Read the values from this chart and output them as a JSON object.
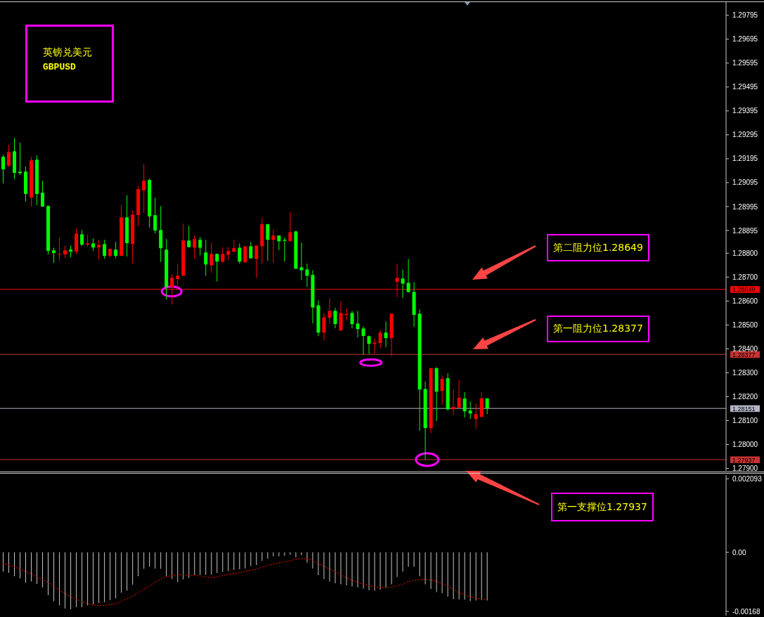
{
  "chart_data": [
    {
      "type": "candlestick",
      "title": "英镑兑美元",
      "subtitle": "GBPUSD",
      "categories": [
        null,
        null,
        null,
        null,
        null,
        null,
        null,
        null,
        null,
        null,
        null,
        null,
        null,
        null,
        null,
        null,
        null,
        null,
        null,
        null,
        null,
        null,
        null,
        null,
        null,
        null,
        null,
        null,
        null,
        null,
        null,
        null,
        null,
        null,
        null,
        null,
        null,
        null,
        null,
        null,
        null,
        null,
        null,
        null,
        null,
        null,
        null,
        null,
        null,
        null,
        null,
        null,
        null,
        null,
        null,
        null,
        null,
        null,
        null,
        null,
        null,
        null,
        null,
        null,
        null,
        null,
        null,
        null,
        null,
        null,
        null,
        null,
        null,
        null,
        null,
        null,
        null,
        null,
        null,
        null,
        null,
        null,
        null,
        null,
        null,
        null,
        null,
        null,
        null,
        null,
        null,
        null,
        null,
        null,
        null,
        null,
        null,
        null,
        null,
        null,
        null,
        null,
        null,
        null,
        null,
        null,
        null,
        null,
        null,
        null,
        null,
        null,
        null,
        null,
        null,
        null,
        null,
        null,
        null,
        null,
        null,
        null,
        null,
        null,
        null,
        null,
        null,
        null,
        null
      ],
      "ohlc": [
        [
          1.29203,
          1.29212,
          1.29092,
          1.29151
        ],
        [
          1.29166,
          1.29253,
          1.2916,
          1.29223
        ],
        [
          1.29226,
          1.29282,
          1.2911,
          1.29136
        ],
        [
          1.29141,
          1.29262,
          1.29127,
          1.29135
        ],
        [
          1.29141,
          1.29162,
          1.29016,
          1.29048
        ],
        [
          1.29033,
          1.29203,
          1.28995,
          1.29188
        ],
        [
          1.29191,
          1.29209,
          1.29001,
          1.29048
        ],
        [
          1.29053,
          1.29103,
          1.28995,
          1.28995
        ],
        [
          1.28997,
          1.29001,
          1.28795,
          1.2881
        ],
        [
          1.28812,
          1.28823,
          1.2876,
          1.28801
        ],
        [
          1.28795,
          1.28865,
          1.28768,
          1.28797
        ],
        [
          1.28795,
          1.28832,
          1.2878,
          1.28812
        ],
        [
          1.28815,
          1.28832,
          1.28783,
          1.28807
        ],
        [
          1.28807,
          1.28903,
          1.28798,
          1.28882
        ],
        [
          1.28879,
          1.28897,
          1.2883,
          1.28836
        ],
        [
          1.28836,
          1.28879,
          1.28827,
          1.28841
        ],
        [
          1.28841,
          1.28862,
          1.2881,
          1.28824
        ],
        [
          1.28824,
          1.28856,
          1.28774,
          1.28835
        ],
        [
          1.28838,
          1.28856,
          1.28777,
          1.28789
        ],
        [
          1.28789,
          1.28818,
          1.28783,
          1.28818
        ],
        [
          1.28815,
          1.28847,
          1.2878,
          1.28789
        ],
        [
          1.28789,
          1.29003,
          1.28789,
          1.2895
        ],
        [
          1.2895,
          1.29042,
          1.28786,
          1.28842
        ],
        [
          1.28839,
          1.28979,
          1.28757,
          1.28962
        ],
        [
          1.2896,
          1.29082,
          1.28913,
          1.29068
        ],
        [
          1.29063,
          1.29174,
          1.28968,
          1.29103
        ],
        [
          1.29106,
          1.29112,
          1.28907,
          1.28954
        ],
        [
          1.28959,
          1.29032,
          1.28883,
          1.28895
        ],
        [
          1.28897,
          1.28997,
          1.28763,
          1.28821
        ],
        [
          1.28815,
          1.28859,
          1.28607,
          1.28658
        ],
        [
          1.28658,
          1.28712,
          1.28586,
          1.28697
        ],
        [
          1.28692,
          1.28756,
          1.28656,
          1.28706
        ],
        [
          1.28706,
          1.28923,
          1.28706,
          1.28853
        ],
        [
          1.28853,
          1.28915,
          1.28823,
          1.28826
        ],
        [
          1.28823,
          1.28874,
          1.28779,
          1.28859
        ],
        [
          1.28856,
          1.28868,
          1.28791,
          1.28823
        ],
        [
          1.28803,
          1.28856,
          1.28706,
          1.28753
        ],
        [
          1.2875,
          1.28844,
          1.28718,
          1.28797
        ],
        [
          1.28797,
          1.28797,
          1.28682,
          1.28765
        ],
        [
          1.28765,
          1.28826,
          1.28759,
          1.28797
        ],
        [
          1.28794,
          1.28826,
          1.28771,
          1.28809
        ],
        [
          1.28806,
          1.28856,
          1.28806,
          1.28821
        ],
        [
          1.28823,
          1.28841,
          1.28756,
          1.28765
        ],
        [
          1.28762,
          1.28829,
          1.28762,
          1.28829
        ],
        [
          1.28829,
          1.28847,
          1.28776,
          1.28779
        ],
        [
          1.28776,
          1.28832,
          1.28697,
          1.28832
        ],
        [
          1.28829,
          1.28947,
          1.28756,
          1.28921
        ],
        [
          1.28921,
          1.28923,
          1.28768,
          1.28856
        ],
        [
          1.28856,
          1.289,
          1.28759,
          1.28874
        ],
        [
          1.28874,
          1.28874,
          1.28812,
          1.2885
        ],
        [
          1.28856,
          1.28865,
          1.28765,
          1.28852
        ],
        [
          1.2885,
          1.28971,
          1.2885,
          1.28888
        ],
        [
          1.28891,
          1.28894,
          1.28735,
          1.28735
        ],
        [
          1.28741,
          1.28844,
          1.28688,
          1.28729
        ],
        [
          1.28732,
          1.28756,
          1.28659,
          1.28706
        ],
        [
          1.28709,
          1.28729,
          1.28506,
          1.28573
        ],
        [
          1.28582,
          1.28603,
          1.28453,
          1.28468
        ],
        [
          1.28468,
          1.2855,
          1.28435,
          1.28532
        ],
        [
          1.2853,
          1.28612,
          1.28507,
          1.28559
        ],
        [
          1.28559,
          1.28571,
          1.28486,
          1.28504
        ],
        [
          1.28477,
          1.286,
          1.28477,
          1.2855
        ],
        [
          1.28542,
          1.28571,
          1.28518,
          1.28546
        ],
        [
          1.2855,
          1.28559,
          1.28486,
          1.28504
        ],
        [
          1.28506,
          1.28559,
          1.28448,
          1.28483
        ],
        [
          1.28485,
          1.28494,
          1.28376,
          1.28454
        ],
        [
          1.28453,
          1.28456,
          1.28379,
          1.28421
        ],
        [
          1.28421,
          1.28444,
          1.28379,
          1.28426
        ],
        [
          1.28424,
          1.28479,
          1.28401,
          1.28468
        ],
        [
          1.28468,
          1.28515,
          1.28407,
          1.28445
        ],
        [
          1.28445,
          1.2855,
          1.28369,
          1.28547
        ],
        [
          1.2868,
          1.28756,
          1.28616,
          1.28697
        ],
        [
          1.28694,
          1.28732,
          1.28612,
          1.28673
        ],
        [
          1.28676,
          1.28776,
          1.28635,
          1.28638
        ],
        [
          1.28638,
          1.28679,
          1.28492,
          1.28542
        ],
        [
          1.28547,
          1.28565,
          1.28057,
          1.2823
        ],
        [
          1.28232,
          1.28263,
          1.27937,
          1.28069
        ],
        [
          1.28069,
          1.28321,
          1.28048,
          1.28319
        ],
        [
          1.28319,
          1.28324,
          1.28098,
          1.28221
        ],
        [
          1.28224,
          1.28289,
          1.28166,
          1.28274
        ],
        [
          1.28277,
          1.28298,
          1.28142,
          1.28148
        ],
        [
          1.28148,
          1.2823,
          1.28124,
          1.28157
        ],
        [
          1.28154,
          1.28271,
          1.28151,
          1.28195
        ],
        [
          1.28192,
          1.28219,
          1.28113,
          1.28139
        ],
        [
          1.28142,
          1.2818,
          1.28107,
          1.2813
        ],
        [
          1.28107,
          1.28171,
          1.28066,
          1.28127
        ],
        [
          1.28116,
          1.28219,
          1.28113,
          1.28193
        ],
        [
          1.28193,
          1.28193,
          1.28127,
          1.28151
        ],
        null,
        null,
        null,
        null,
        null,
        null,
        null,
        null,
        null,
        null,
        null,
        null,
        null,
        null,
        null,
        null,
        null,
        null,
        null,
        null,
        null,
        null,
        null,
        null,
        null,
        null,
        null,
        null,
        null,
        null,
        null,
        null,
        null,
        null,
        null,
        null,
        null,
        null,
        null,
        null,
        null,
        null
      ],
      "colors": [
        "#00ff00",
        "#ff0000",
        "#00ff00",
        "#00ff00",
        "#00ff00",
        "#ff0000",
        "#00ff00",
        "#00ff00",
        "#00ff00",
        "#00ff00",
        "#ff0000",
        "#ff0000",
        "#00ff00",
        "#ff0000",
        "#00ff00",
        "#ff0000",
        "#00ff00",
        "#ff0000",
        "#00ff00",
        "#ff0000",
        "#00ff00",
        "#ff0000",
        "#00ff00",
        "#ff0000",
        "#ff0000",
        "#ff0000",
        "#00ff00",
        "#00ff00",
        "#00ff00",
        "#00ff00",
        "#ff0000",
        "#ff0000",
        "#ff0000",
        "#00ff00",
        "#ff0000",
        "#00ff00",
        "#00ff00",
        "#ff0000",
        "#00ff00",
        "#ff0000",
        "#ff0000",
        "#ff0000",
        "#00ff00",
        "#ff0000",
        "#00ff00",
        "#ff0000",
        "#ff0000",
        "#00ff00",
        "#ff0000",
        "#00ff00",
        "#00ff00",
        "#ff0000",
        "#00ff00",
        "#00ff00",
        "#00ff00",
        "#00ff00",
        "#00ff00",
        "#ff0000",
        "#ff0000",
        "#00ff00",
        "#ff0000",
        "#ff0000",
        "#00ff00",
        "#00ff00",
        "#00ff00",
        "#00ff00",
        "#ff0000",
        "#ff0000",
        "#00ff00",
        "#ff0000",
        "#ff0000",
        "#00ff00",
        "#00ff00",
        "#00ff00",
        "#00ff00",
        "#00ff00",
        "#ff0000",
        "#00ff00",
        "#ff0000",
        "#00ff00",
        "#ff0000",
        "#ff0000",
        "#00ff00",
        "#00ff00",
        "#ff0000",
        "#ff0000",
        "#00ff00",
        null,
        null,
        null,
        null,
        null,
        null,
        null,
        null,
        null,
        null,
        null,
        null,
        null,
        null,
        null,
        null,
        null,
        null,
        null,
        null,
        null,
        null,
        null,
        null,
        null,
        null,
        null,
        null,
        null,
        null,
        null,
        null,
        null,
        null,
        null,
        null,
        null,
        null,
        null,
        null,
        null,
        null
      ],
      "ylim": [
        1.2789,
        1.2985
      ],
      "yticks": [
        1.29795,
        1.29695,
        1.29595,
        1.29495,
        1.29395,
        1.29295,
        1.29195,
        1.29095,
        1.28995,
        1.28895,
        {
          "value": 1.288,
          "label": "1.28800"
        },
        {
          "value": 1.287,
          "label": "1.28700"
        },
        {
          "value": 1.286,
          "label": "1.28600"
        },
        {
          "value": 1.285,
          "label": "1.28500"
        },
        {
          "value": 1.284,
          "label": "1.28400"
        },
        {
          "value": 1.283,
          "label": "1.28300"
        },
        {
          "value": 1.282,
          "label": "1.28200"
        },
        {
          "value": 1.281,
          "label": "1.28100"
        },
        {
          "value": 1.28,
          "label": "1.28000"
        },
        {
          "value": 1.279,
          "label": "1.27900"
        }
      ],
      "tick_labels": "y",
      "ref_lines": [
        {
          "axis": "y",
          "value": 1.28649,
          "label": "1.28649",
          "color": "#ff0000"
        },
        {
          "axis": "y",
          "value": 1.28377,
          "label": "1.28377",
          "color": "#c83232"
        },
        {
          "axis": "y",
          "value": 1.28151,
          "label": "1.28151",
          "color": "#b4b4c8"
        },
        {
          "axis": "y",
          "value": 1.27937,
          "label": "1.27937",
          "color": "#c83232"
        }
      ],
      "annotations": [
        "第二阻力位1.28649",
        "第一阻力位1.28377",
        "第一支撑位1.27937"
      ]
    },
    {
      "type": "bar",
      "categories": [
        null,
        null,
        null,
        null,
        null,
        null,
        null,
        null,
        null,
        null,
        null,
        null,
        null,
        null,
        null,
        null,
        null,
        null,
        null,
        null,
        null,
        null,
        null,
        null,
        null,
        null,
        null,
        null,
        null,
        null,
        null,
        null,
        null,
        null,
        null,
        null,
        null,
        null,
        null,
        null,
        null,
        null,
        null,
        null,
        null,
        null,
        null,
        null,
        null,
        null,
        null,
        null,
        null,
        null,
        null,
        null,
        null,
        null,
        null,
        null,
        null,
        null,
        null,
        null,
        null,
        null,
        null,
        null,
        null,
        null,
        null,
        null,
        null,
        null,
        null,
        null,
        null,
        null,
        null,
        null,
        null,
        null,
        null,
        null,
        null,
        null,
        null,
        null,
        null,
        null,
        null,
        null,
        null,
        null,
        null,
        null,
        null,
        null,
        null,
        null,
        null,
        null,
        null,
        null,
        null,
        null,
        null,
        null,
        null,
        null,
        null,
        null,
        null,
        null,
        null,
        null,
        null,
        null,
        null,
        null,
        null,
        null,
        null,
        null,
        null,
        null,
        null,
        null,
        null
      ],
      "series": [
        {
          "type": "bar",
          "color": "#c8c8c8",
          "values": [
            -0.00055,
            -0.00058,
            -0.00068,
            -0.00074,
            -0.00086,
            -0.00083,
            -0.0009,
            -0.001,
            -0.00122,
            -0.00139,
            -0.00151,
            -0.0016,
            -0.00162,
            -0.00156,
            -0.00156,
            -0.00151,
            -0.00148,
            -0.00144,
            -0.00142,
            -0.00136,
            -0.00131,
            -0.00115,
            -0.00109,
            -0.00092,
            -0.00068,
            -0.00047,
            -0.00041,
            -0.00046,
            -0.00047,
            -0.00068,
            -0.00076,
            -0.00085,
            -0.00077,
            -0.00073,
            -0.00065,
            -0.00064,
            -0.00064,
            -0.00063,
            -0.00059,
            -0.00056,
            -0.00053,
            -0.0005,
            -0.00048,
            -0.00046,
            -0.00039,
            -0.00036,
            -0.00024,
            -0.00018,
            -0.00011,
            -0.00011,
            -0.0001,
            -7e-05,
            -0.00014,
            -8e-05,
            -0.00029,
            -0.00046,
            -0.00065,
            -0.00076,
            -0.00083,
            -0.00088,
            -0.00091,
            -0.00094,
            -0.00097,
            -0.001,
            -0.00103,
            -0.00108,
            -0.00109,
            -0.00106,
            -0.001,
            -0.00091,
            -0.0007,
            -0.00055,
            -0.00041,
            -0.00041,
            -0.00068,
            -0.00091,
            -0.00104,
            -0.00113,
            -0.00116,
            -0.00126,
            -0.00133,
            -0.00134,
            -0.00135,
            -0.00139,
            -0.00137,
            -0.00136,
            -0.00137,
            null,
            null,
            null,
            null,
            null,
            null,
            null,
            null,
            null,
            null,
            null,
            null,
            null,
            null,
            null,
            null,
            null,
            null,
            null,
            null,
            null,
            null,
            null,
            null,
            null,
            null,
            null,
            null,
            null,
            null,
            null,
            null,
            null,
            null,
            null,
            null,
            null,
            null,
            null,
            null,
            null,
            null
          ]
        },
        {
          "type": "line",
          "color": "#ff0000",
          "line_style": "dotted",
          "values": [
            -0.00032,
            -0.00036,
            -0.00041,
            -0.00047,
            -0.00054,
            -0.00061,
            -0.00069,
            -0.00077,
            -0.00085,
            -0.00096,
            -0.00108,
            -0.00117,
            -0.00126,
            -0.00133,
            -0.00139,
            -0.00146,
            -0.0015,
            -0.00151,
            -0.00151,
            -0.00149,
            -0.00146,
            -0.00141,
            -0.00132,
            -0.00126,
            -0.00116,
            -0.00106,
            -0.00097,
            -0.00085,
            -0.00076,
            -0.0007,
            -0.00066,
            -0.00063,
            -0.00064,
            -0.00065,
            -0.00065,
            -0.00067,
            -0.0007,
            -0.00072,
            -0.0007,
            -0.00066,
            -0.00063,
            -0.00061,
            -0.00058,
            -0.00054,
            -0.00051,
            -0.00048,
            -0.00043,
            -0.00037,
            -0.00034,
            -0.0003,
            -0.00027,
            -0.00024,
            -0.0002,
            -0.00018,
            -0.00018,
            -0.00023,
            -0.00031,
            -0.00039,
            -0.00047,
            -0.00054,
            -0.00063,
            -0.00072,
            -0.00079,
            -0.00085,
            -0.0009,
            -0.00094,
            -0.00099,
            -0.001,
            -0.00101,
            -0.00099,
            -0.00096,
            -0.00091,
            -0.00084,
            -0.0008,
            -0.00078,
            -0.00076,
            -0.00079,
            -0.00082,
            -0.00089,
            -0.00096,
            -0.00104,
            -0.00115,
            -0.0012,
            -0.00127,
            -0.0013,
            -0.00133,
            -0.00134,
            null,
            null,
            null,
            null,
            null,
            null,
            null,
            null,
            null,
            null,
            null,
            null,
            null,
            null,
            null,
            null,
            null,
            null,
            null,
            null,
            null,
            null,
            null,
            null,
            null,
            null,
            null,
            null,
            null,
            null,
            null,
            null,
            null,
            null,
            null,
            null,
            null,
            null,
            null,
            null,
            null,
            null
          ]
        }
      ],
      "ylim": [
        -0.0018,
        0.0022
      ],
      "yticks": [
        0.002093,
        {
          "value": 0,
          "label": "0.00"
        },
        -0.00168
      ],
      "tick_labels": "y"
    }
  ]
}
